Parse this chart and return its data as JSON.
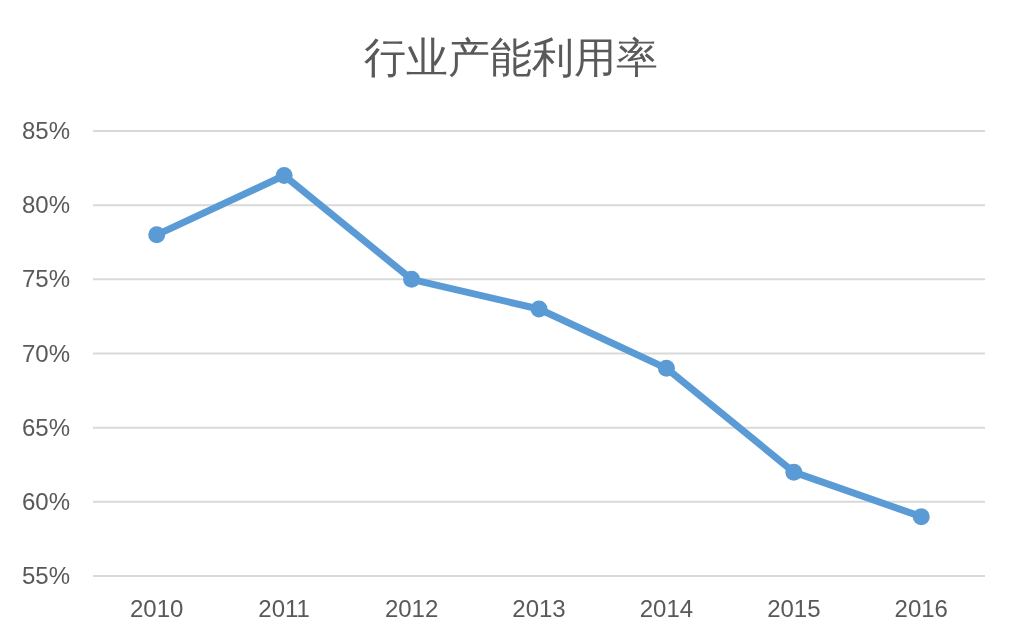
{
  "chart_data": {
    "type": "line",
    "title": "行业产能利用率",
    "categories": [
      "2010",
      "2011",
      "2012",
      "2013",
      "2014",
      "2015",
      "2016"
    ],
    "series": [
      {
        "color": "#5b9bd5",
        "values": [
          78,
          82,
          75,
          73,
          69,
          62,
          59
        ]
      }
    ],
    "ylim": [
      55,
      85
    ],
    "yticks": [
      {
        "value": 55,
        "label": "55%"
      },
      {
        "value": 60,
        "label": "60%"
      },
      {
        "value": 65,
        "label": "65%"
      },
      {
        "value": 70,
        "label": "70%"
      },
      {
        "value": 75,
        "label": "75%"
      },
      {
        "value": 80,
        "label": "80%"
      },
      {
        "value": 85,
        "label": "85%"
      }
    ],
    "grid": "y",
    "marker": "circle",
    "line_style": "solid"
  }
}
